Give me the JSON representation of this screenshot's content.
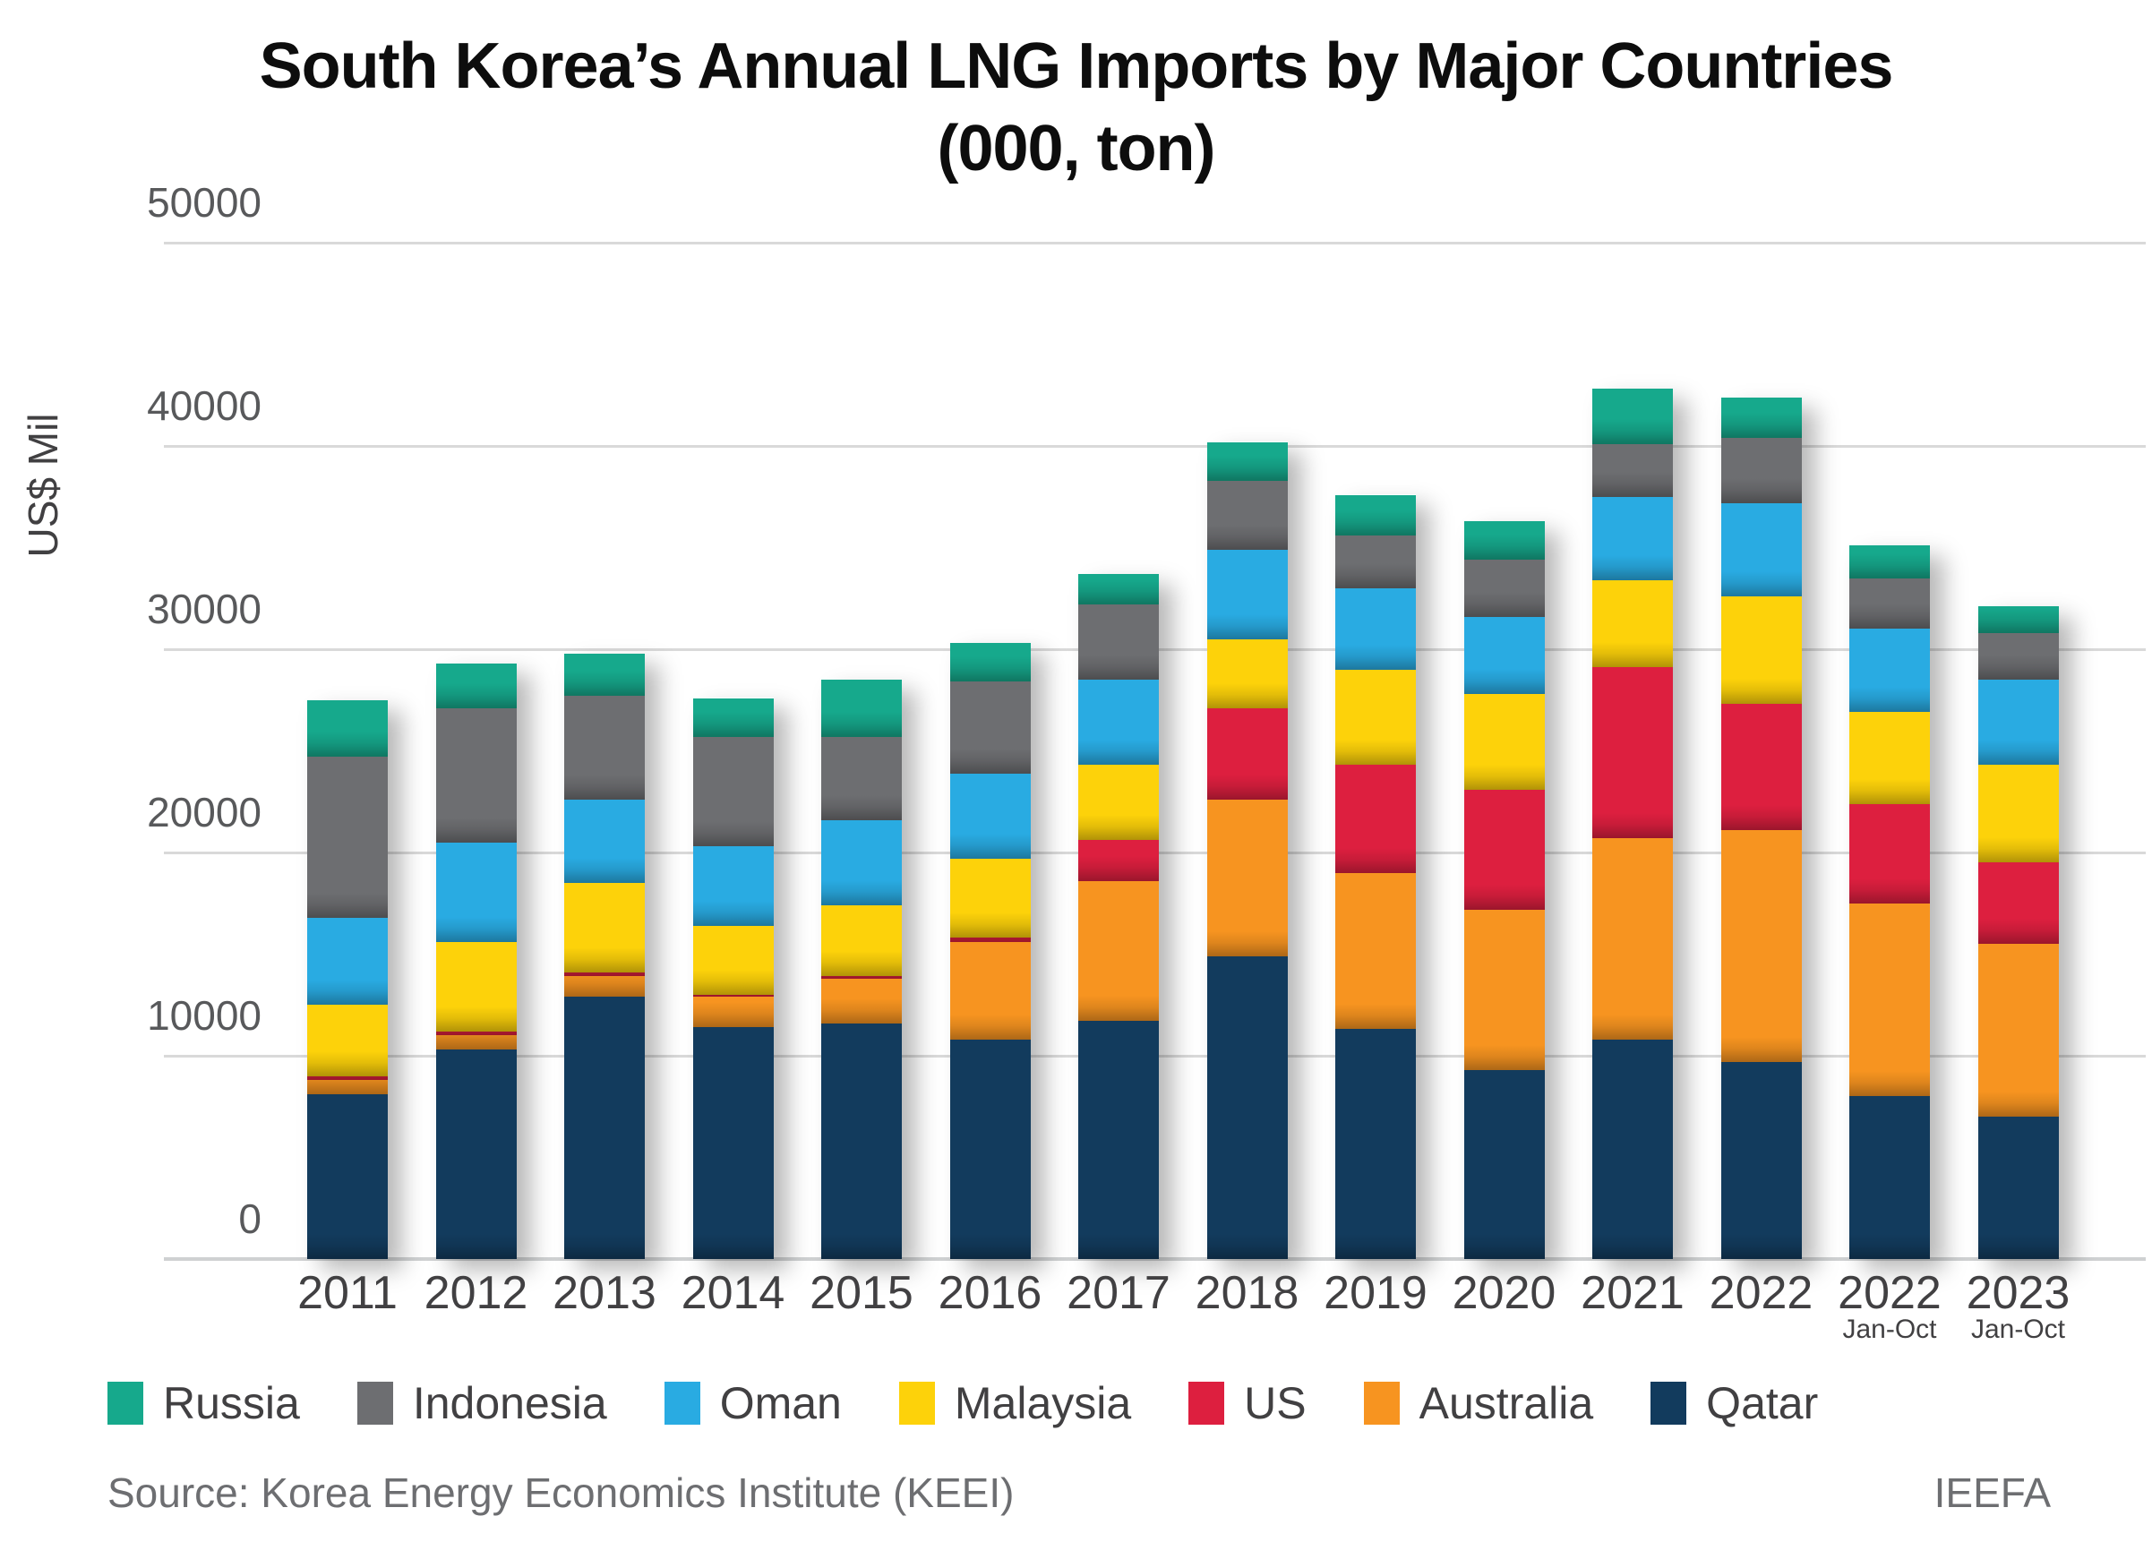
{
  "title": {
    "line1": "South Korea’s Annual LNG Imports by Major Countries",
    "line2": "(000, ton)"
  },
  "y_axis": {
    "label": "US$ Mil",
    "ticks": [
      0,
      10000,
      20000,
      30000,
      40000,
      50000
    ]
  },
  "legend": [
    {
      "name": "Russia",
      "color": "#16a98c"
    },
    {
      "name": "Indonesia",
      "color": "#6d6e71"
    },
    {
      "name": "Oman",
      "color": "#29abe2"
    },
    {
      "name": "Malaysia",
      "color": "#fdd20a"
    },
    {
      "name": "US",
      "color": "#dd1f3f"
    },
    {
      "name": "Australia",
      "color": "#f79420"
    },
    {
      "name": "Qatar",
      "color": "#123b5d"
    }
  ],
  "footer": {
    "source": "Source: Korea Energy Economics Institute (KEEI)",
    "credit": "IEEFA"
  },
  "chart_data": {
    "type": "bar",
    "stacked": true,
    "title": "South Korea’s Annual LNG Imports by Major Countries (000, ton)",
    "ylabel": "US$ Mil",
    "ylim": [
      0,
      50000
    ],
    "grid": true,
    "legend_position": "bottom",
    "categories": [
      "2011",
      "2012",
      "2013",
      "2014",
      "2015",
      "2016",
      "2017",
      "2018",
      "2019",
      "2020",
      "2021",
      "2022",
      "2022",
      "2023"
    ],
    "category_sublabels": [
      "",
      "",
      "",
      "",
      "",
      "",
      "",
      "",
      "",
      "",
      "",
      "",
      "Jan-Oct",
      "Jan-Oct"
    ],
    "series": [
      {
        "name": "Qatar",
        "color": "#123b5d",
        "values": [
          8100,
          10300,
          12900,
          11400,
          11600,
          10800,
          11700,
          14900,
          11300,
          9300,
          10800,
          9700,
          8000,
          7000
        ]
      },
      {
        "name": "Australia",
        "color": "#f79420",
        "values": [
          700,
          700,
          1000,
          1500,
          2200,
          4800,
          6900,
          7700,
          7700,
          7900,
          9900,
          11400,
          9500,
          8500
        ]
      },
      {
        "name": "US",
        "color": "#dd1f3f",
        "values": [
          200,
          200,
          200,
          100,
          100,
          200,
          2000,
          4500,
          5300,
          5900,
          8400,
          6200,
          4900,
          4000
        ]
      },
      {
        "name": "Malaysia",
        "color": "#fdd20a",
        "values": [
          3500,
          4400,
          4400,
          3400,
          3500,
          3900,
          3700,
          3400,
          4700,
          4700,
          4300,
          5300,
          4500,
          4800
        ]
      },
      {
        "name": "Oman",
        "color": "#29abe2",
        "values": [
          4300,
          4900,
          4100,
          3900,
          4200,
          4200,
          4200,
          4400,
          4000,
          3800,
          4100,
          4600,
          4100,
          4200
        ]
      },
      {
        "name": "Indonesia",
        "color": "#6d6e71",
        "values": [
          7900,
          6600,
          5100,
          5400,
          4100,
          4500,
          3700,
          3400,
          2600,
          2800,
          2600,
          3200,
          2500,
          2300
        ]
      },
      {
        "name": "Russia",
        "color": "#16a98c",
        "values": [
          2800,
          2200,
          2100,
          1900,
          2800,
          1900,
          1500,
          1900,
          2000,
          1900,
          2700,
          2000,
          1600,
          1300
        ]
      }
    ]
  }
}
